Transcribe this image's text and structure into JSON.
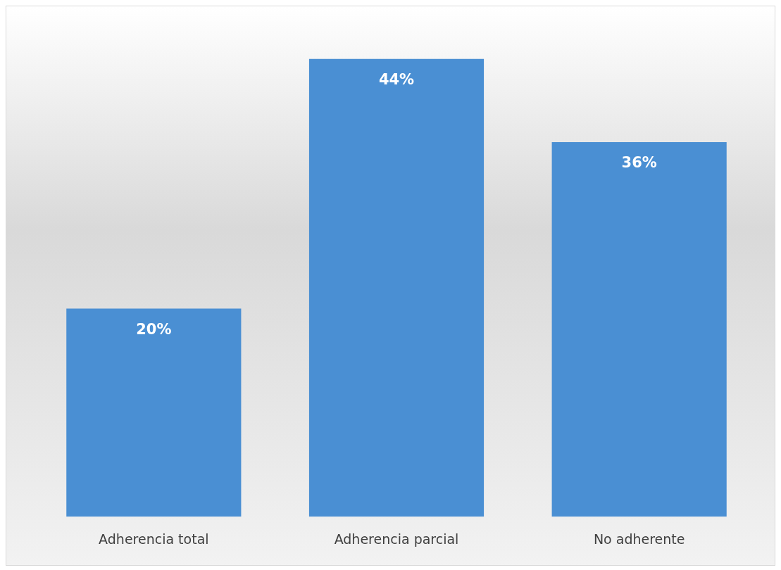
{
  "chart_data": {
    "type": "bar",
    "categories": [
      "Adherencia total",
      "Adherencia parcial",
      "No adherente"
    ],
    "values": [
      20,
      44,
      36
    ],
    "value_labels": [
      "20%",
      "44%",
      "36%"
    ],
    "color": "#4a8fd3",
    "grid": false,
    "legend": false,
    "tick_labels": "x"
  }
}
